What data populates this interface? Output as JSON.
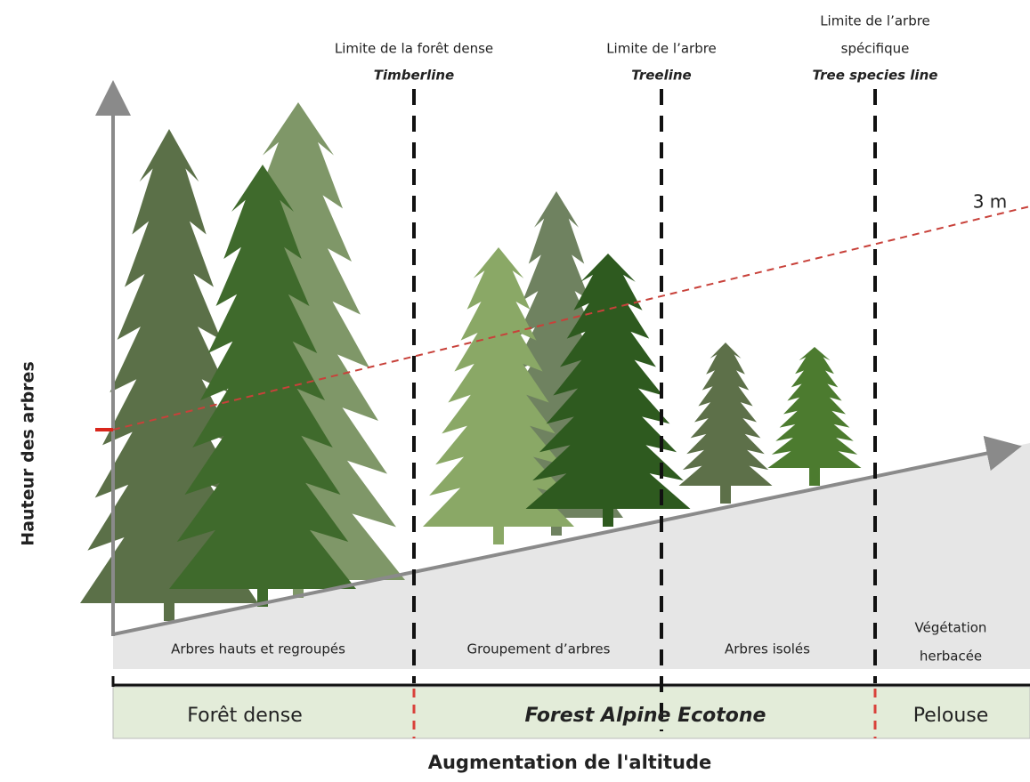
{
  "axes": {
    "y_label": "Hauteur des arbres",
    "x_label": "Augmentation de l'altitude"
  },
  "boundaries": [
    {
      "name": [
        "Limite de la forêt dense"
      ],
      "term": "Timberline"
    },
    {
      "name": [
        "Limite de l’arbre"
      ],
      "term": "Treeline"
    },
    {
      "name": [
        "Limite de l’arbre",
        "spécifique"
      ],
      "term": "Tree species line"
    }
  ],
  "height_label": "3 m",
  "zones": [
    [
      "Arbres hauts et regroupés"
    ],
    [
      "Groupement d’arbres"
    ],
    [
      "Arbres isolés"
    ],
    [
      "Végétation",
      "herbacée"
    ]
  ],
  "bands": [
    "Forêt dense",
    "Forest Alpine Ecotone",
    "Pelouse"
  ]
}
